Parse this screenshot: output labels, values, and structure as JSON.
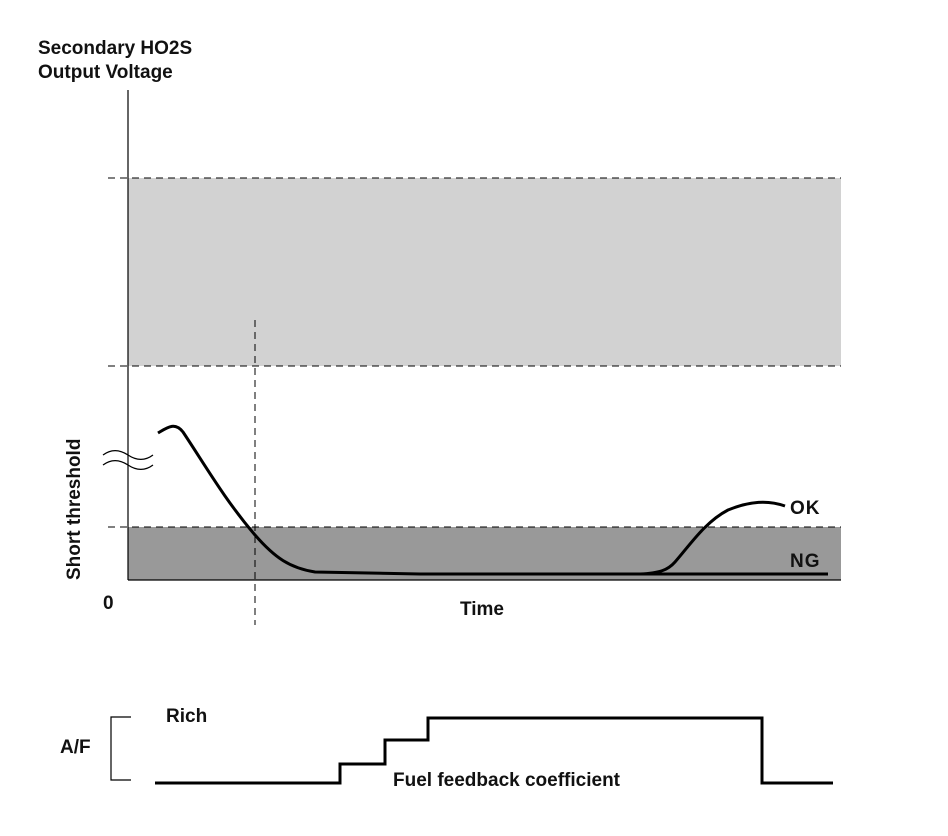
{
  "y_axis_title_line1": "Secondary HO2S",
  "y_axis_title_line2": "Output Voltage",
  "y_axis_vertical_label": "Short threshold",
  "origin_label": "0",
  "x_axis_label": "Time",
  "curve_labels": {
    "ok": "OK",
    "ng": "NG"
  },
  "af_label": "A/F",
  "rich_label": "Rich",
  "fuel_label": "Fuel feedback coefficient",
  "colors": {
    "light_band": "#d2d2d2",
    "dark_band": "#999999",
    "line": "#000000"
  }
}
